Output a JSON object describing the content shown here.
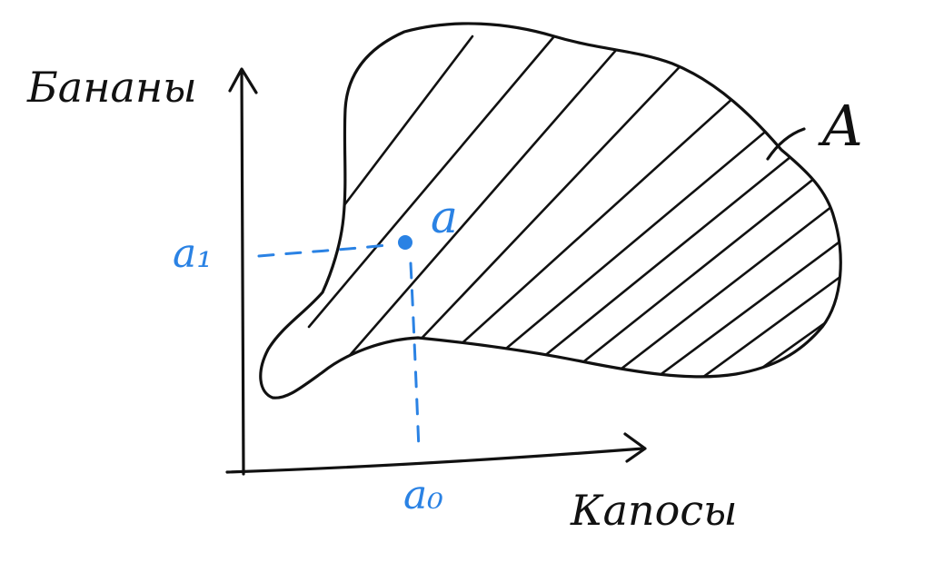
{
  "labels": {
    "y_axis": "Бананы",
    "x_axis": "Капосы",
    "set": "A",
    "point": "a",
    "point_y": "a₁",
    "point_x": "a₀"
  },
  "colors": {
    "ink": "#111111",
    "accent": "#2a82e4",
    "background": "#ffffff"
  }
}
